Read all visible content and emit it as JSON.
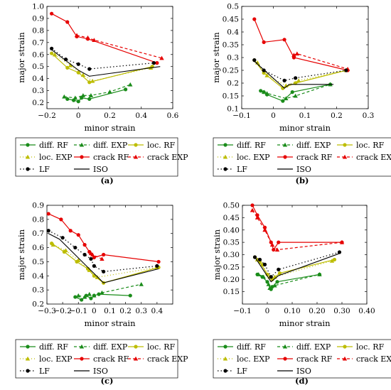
{
  "legend": {
    "entries": [
      {
        "key": "diff_rf",
        "label": "diff. RF"
      },
      {
        "key": "diff_exp",
        "label": "diff. EXP"
      },
      {
        "key": "loc_rf",
        "label": "loc. RF"
      },
      {
        "key": "loc_exp",
        "label": "loc. EXP"
      },
      {
        "key": "crack_rf",
        "label": "crack RF"
      },
      {
        "key": "crack_exp",
        "label": "crack EXP"
      },
      {
        "key": "lf",
        "label": "LF"
      },
      {
        "key": "iso",
        "label": "ISO"
      }
    ]
  },
  "styles": {
    "diff_rf": {
      "color": "#1a8c1a",
      "dash": "",
      "marker": "circle"
    },
    "diff_exp": {
      "color": "#1a8c1a",
      "dash": "4,3",
      "marker": "triangle"
    },
    "loc_rf": {
      "color": "#bdbd00",
      "dash": "",
      "marker": "circle"
    },
    "loc_exp": {
      "color": "#bdbd00",
      "dash": "1,3",
      "marker": "triangle"
    },
    "crack_rf": {
      "color": "#e60000",
      "dash": "",
      "marker": "circle"
    },
    "crack_exp": {
      "color": "#e60000",
      "dash": "4,3",
      "marker": "triangle"
    },
    "lf": {
      "color": "#000000",
      "dash": "1.5,3",
      "marker": "circle"
    },
    "iso": {
      "color": "#000000",
      "dash": "",
      "marker": "none"
    }
  },
  "chart_data": [
    {
      "type": "line",
      "panel_label": "(a)",
      "xlabel": "minor strain",
      "ylabel": "major strain",
      "xlim": [
        -0.2,
        0.6
      ],
      "ylim": [
        0.15,
        1.0
      ],
      "xticks": [
        -0.2,
        0,
        0.2,
        0.4,
        0.6
      ],
      "xtick_labels": [
        "−0.2",
        "0",
        "0.2",
        "0.4",
        "0.6"
      ],
      "yticks": [
        0.2,
        0.3,
        0.4,
        0.5,
        0.6,
        0.7,
        0.8,
        0.9,
        1.0
      ],
      "ytick_labels": [
        "0.2",
        "0.3",
        "0.4",
        "0.5",
        "0.6",
        "0.7",
        "0.8",
        "0.9",
        "1.0"
      ],
      "series": [
        {
          "key": "diff_rf",
          "x": [
            -0.07,
            -0.03,
            0.0,
            0.02,
            0.07,
            0.3
          ],
          "y": [
            0.23,
            0.22,
            0.21,
            0.24,
            0.23,
            0.31
          ]
        },
        {
          "key": "diff_exp",
          "x": [
            -0.09,
            -0.02,
            0.03,
            0.08,
            0.2,
            0.33
          ],
          "y": [
            0.25,
            0.24,
            0.26,
            0.26,
            0.29,
            0.35
          ]
        },
        {
          "key": "loc_rf",
          "x": [
            -0.17,
            -0.07,
            0.0,
            0.07,
            0.47
          ],
          "y": [
            0.61,
            0.49,
            0.45,
            0.37,
            0.5
          ]
        },
        {
          "key": "loc_exp",
          "x": [
            -0.15,
            -0.05,
            0.03,
            0.09,
            0.46
          ],
          "y": [
            0.6,
            0.51,
            0.43,
            0.38,
            0.49
          ]
        },
        {
          "key": "crack_rf",
          "x": [
            -0.17,
            -0.07,
            -0.01,
            0.06,
            0.5
          ],
          "y": [
            0.94,
            0.87,
            0.75,
            0.73,
            0.53
          ]
        },
        {
          "key": "crack_exp",
          "x": [
            -0.01,
            0.06,
            0.1,
            0.53
          ],
          "y": [
            0.76,
            0.74,
            0.72,
            0.57
          ]
        },
        {
          "key": "lf",
          "x": [
            -0.17,
            -0.08,
            0.0,
            0.07,
            0.48
          ],
          "y": [
            0.65,
            0.56,
            0.52,
            0.48,
            0.53
          ]
        },
        {
          "key": "iso",
          "x": [
            -0.17,
            0.0,
            0.07,
            0.52
          ],
          "y": [
            0.64,
            0.47,
            0.42,
            0.5
          ]
        }
      ]
    },
    {
      "type": "line",
      "panel_label": "(b)",
      "xlabel": "minor strain",
      "ylabel": "major strain",
      "xlim": [
        -0.1,
        0.3
      ],
      "ylim": [
        0.1,
        0.5
      ],
      "xticks": [
        -0.1,
        0,
        0.1,
        0.2,
        0.3
      ],
      "xtick_labels": [
        "−0.1",
        "0",
        "0.1",
        "0.2",
        "0.3"
      ],
      "yticks": [
        0.1,
        0.15,
        0.2,
        0.25,
        0.3,
        0.35,
        0.4,
        0.45,
        0.5
      ],
      "ytick_labels": [
        "0.1",
        "0.15",
        "0.2",
        "0.25",
        "0.3",
        "0.35",
        "0.4",
        "0.45",
        "0.5"
      ],
      "series": [
        {
          "key": "diff_rf",
          "x": [
            -0.04,
            -0.03,
            -0.02,
            0.03,
            0.06,
            0.18
          ],
          "y": [
            0.17,
            0.165,
            0.155,
            0.13,
            0.165,
            0.195
          ]
        },
        {
          "key": "diff_exp",
          "x": [
            -0.03,
            -0.02,
            0.04,
            0.07,
            0.18
          ],
          "y": [
            0.165,
            0.16,
            0.14,
            0.15,
            0.195
          ]
        },
        {
          "key": "loc_rf",
          "x": [
            -0.06,
            -0.03,
            0.03,
            0.07,
            0.23
          ],
          "y": [
            0.29,
            0.24,
            0.18,
            0.2,
            0.25
          ]
        },
        {
          "key": "loc_exp",
          "x": [
            -0.05,
            -0.02,
            0.04,
            0.08,
            0.23
          ],
          "y": [
            0.28,
            0.23,
            0.19,
            0.21,
            0.25
          ]
        },
        {
          "key": "crack_rf",
          "x": [
            -0.06,
            -0.03,
            0.035,
            0.065,
            0.235
          ],
          "y": [
            0.45,
            0.36,
            0.37,
            0.3,
            0.25
          ]
        },
        {
          "key": "crack_exp",
          "x": [
            0.065,
            0.075,
            0.235
          ],
          "y": [
            0.31,
            0.315,
            0.255
          ]
        },
        {
          "key": "lf",
          "x": [
            -0.06,
            -0.03,
            0.035,
            0.07,
            0.23
          ],
          "y": [
            0.29,
            0.25,
            0.21,
            0.22,
            0.25
          ]
        },
        {
          "key": "iso",
          "x": [
            -0.06,
            0.035,
            0.05,
            0.19
          ],
          "y": [
            0.285,
            0.18,
            0.195,
            0.195
          ]
        }
      ]
    },
    {
      "type": "line",
      "panel_label": "(c)",
      "xlabel": "minor strain",
      "ylabel": "major strain",
      "xlim": [
        -0.3,
        0.5
      ],
      "ylim": [
        0.2,
        0.9
      ],
      "xticks": [
        -0.3,
        -0.2,
        -0.1,
        0,
        0.1,
        0.2,
        0.3,
        0.4
      ],
      "xtick_labels": [
        "−0.3",
        "−0.2",
        "−0.1",
        "0",
        "0.1",
        "0.2",
        "0.3",
        "0.4"
      ],
      "yticks": [
        0.2,
        0.3,
        0.4,
        0.5,
        0.6,
        0.7,
        0.8,
        0.9
      ],
      "ytick_labels": [
        "0.2",
        "0.3",
        "0.4",
        "0.5",
        "0.6",
        "0.7",
        "0.8",
        "0.9"
      ],
      "series": [
        {
          "key": "diff_rf",
          "x": [
            -0.12,
            -0.08,
            -0.05,
            -0.02,
            0.0,
            0.03,
            0.23
          ],
          "y": [
            0.25,
            0.23,
            0.26,
            0.24,
            0.26,
            0.27,
            0.26
          ]
        },
        {
          "key": "diff_exp",
          "x": [
            -0.1,
            -0.06,
            -0.03,
            0.0,
            0.05,
            0.3
          ],
          "y": [
            0.26,
            0.25,
            0.27,
            0.26,
            0.28,
            0.34
          ]
        },
        {
          "key": "loc_rf",
          "x": [
            -0.27,
            -0.19,
            -0.11,
            -0.04,
            0.0,
            0.06,
            0.41
          ],
          "y": [
            0.63,
            0.57,
            0.5,
            0.45,
            0.4,
            0.35,
            0.46
          ]
        },
        {
          "key": "loc_exp",
          "x": [
            -0.26,
            -0.18,
            -0.1,
            -0.03,
            0.02,
            0.4
          ],
          "y": [
            0.62,
            0.58,
            0.51,
            0.44,
            0.39,
            0.46
          ]
        },
        {
          "key": "crack_rf",
          "x": [
            -0.29,
            -0.21,
            -0.15,
            -0.1,
            -0.06,
            -0.03,
            0.0,
            0.06,
            0.41
          ],
          "y": [
            0.84,
            0.8,
            0.72,
            0.69,
            0.62,
            0.57,
            0.53,
            0.55,
            0.5
          ]
        },
        {
          "key": "crack_exp",
          "x": [
            -0.02,
            -0.01,
            0.05
          ],
          "y": [
            0.56,
            0.55,
            0.52
          ]
        },
        {
          "key": "lf",
          "x": [
            -0.29,
            -0.2,
            -0.12,
            -0.06,
            -0.02,
            0.0,
            0.06,
            0.4
          ],
          "y": [
            0.72,
            0.67,
            0.6,
            0.55,
            0.52,
            0.47,
            0.43,
            0.47
          ]
        },
        {
          "key": "iso",
          "x": [
            -0.29,
            -0.22,
            0.06,
            0.41
          ],
          "y": [
            0.7,
            0.66,
            0.35,
            0.45
          ]
        }
      ]
    },
    {
      "type": "line",
      "panel_label": "(d)",
      "xlabel": "minor strain",
      "ylabel": "major strain",
      "xlim": [
        -0.1,
        0.4
      ],
      "ylim": [
        0.1,
        0.5
      ],
      "xticks": [
        -0.1,
        0,
        0.1,
        0.2,
        0.3,
        0.4
      ],
      "xtick_labels": [
        "−0.1",
        "0",
        "0.10",
        "0.20",
        "0.30",
        "0.40"
      ],
      "yticks": [
        0.15,
        0.2,
        0.25,
        0.3,
        0.35,
        0.4,
        0.45,
        0.5
      ],
      "ytick_labels": [
        "0.15",
        "0.20",
        "0.25",
        "0.30",
        "0.35",
        "0.40",
        "0.45",
        "0.50"
      ],
      "series": [
        {
          "key": "diff_rf",
          "x": [
            -0.04,
            -0.02,
            0.0,
            0.015,
            0.02,
            0.04,
            0.21
          ],
          "y": [
            0.22,
            0.21,
            0.19,
            0.16,
            0.17,
            0.19,
            0.22
          ]
        },
        {
          "key": "diff_exp",
          "x": [
            -0.035,
            -0.015,
            0.005,
            0.01,
            0.03,
            0.21
          ],
          "y": [
            0.22,
            0.21,
            0.18,
            0.165,
            0.175,
            0.22
          ]
        },
        {
          "key": "loc_rf",
          "x": [
            -0.05,
            -0.03,
            0.0,
            0.02,
            0.05,
            0.27
          ],
          "y": [
            0.29,
            0.27,
            0.22,
            0.2,
            0.225,
            0.28
          ]
        },
        {
          "key": "loc_exp",
          "x": [
            -0.04,
            -0.02,
            0.01,
            0.03,
            0.26
          ],
          "y": [
            0.28,
            0.26,
            0.21,
            0.21,
            0.275
          ]
        },
        {
          "key": "crack_rf",
          "x": [
            -0.06,
            -0.04,
            -0.01,
            0.015,
            0.025,
            0.045,
            0.3
          ],
          "y": [
            0.5,
            0.46,
            0.41,
            0.35,
            0.32,
            0.35,
            0.35
          ]
        },
        {
          "key": "crack_exp",
          "x": [
            -0.06,
            -0.04,
            -0.01,
            0.02,
            0.04,
            0.3
          ],
          "y": [
            0.48,
            0.45,
            0.4,
            0.34,
            0.32,
            0.35
          ]
        },
        {
          "key": "lf",
          "x": [
            -0.05,
            -0.03,
            -0.01,
            0.015,
            0.045,
            0.29
          ],
          "y": [
            0.29,
            0.28,
            0.26,
            0.21,
            0.24,
            0.31
          ]
        },
        {
          "key": "iso",
          "x": [
            -0.05,
            0.015,
            0.045,
            0.29
          ],
          "y": [
            0.29,
            0.19,
            0.215,
            0.305
          ]
        }
      ]
    }
  ]
}
